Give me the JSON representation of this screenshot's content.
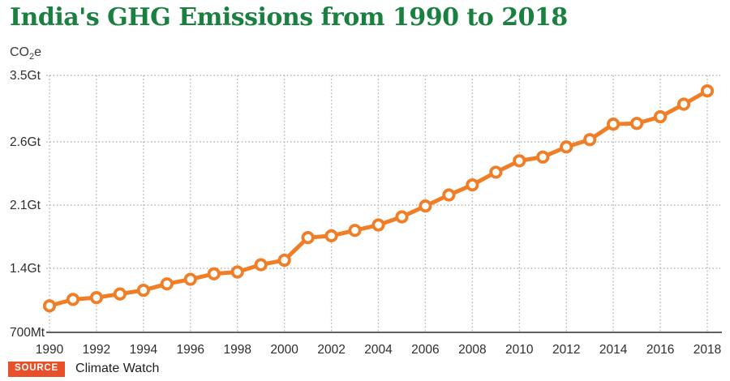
{
  "header": {
    "title": "India's GHG Emissions from 1990 to 2018"
  },
  "axis_unit": {
    "pre": "CO",
    "sub": "2",
    "post": "e"
  },
  "chart_data": {
    "type": "line",
    "title": "India's GHG Emissions from 1990 to 2018",
    "ylabel": "CO2e",
    "unit": "Gt CO2e",
    "series_name": "India GHG emissions",
    "x": [
      1990,
      1991,
      1992,
      1993,
      1994,
      1995,
      1996,
      1997,
      1998,
      1999,
      2000,
      2001,
      2002,
      2003,
      2004,
      2005,
      2006,
      2007,
      2008,
      2009,
      2010,
      2011,
      2012,
      2013,
      2014,
      2015,
      2016,
      2017,
      2018
    ],
    "values": [
      0.99,
      1.06,
      1.08,
      1.12,
      1.16,
      1.23,
      1.28,
      1.34,
      1.36,
      1.44,
      1.49,
      1.74,
      1.76,
      1.82,
      1.88,
      1.97,
      2.09,
      2.18,
      2.26,
      2.36,
      2.45,
      2.48,
      2.56,
      2.63,
      2.84,
      2.85,
      2.94,
      3.11,
      3.29
    ],
    "y_ticks": [
      {
        "label": "3.5Gt",
        "value": 3.5
      },
      {
        "label": "2.6Gt",
        "value": 2.6
      },
      {
        "label": "2.1Gt",
        "value": 2.1
      },
      {
        "label": "1.4Gt",
        "value": 1.4
      },
      {
        "label": "700Mt",
        "value": 0.7
      }
    ],
    "x_tick_years": [
      1990,
      1992,
      1994,
      1996,
      1998,
      2000,
      2002,
      2004,
      2006,
      2008,
      2010,
      2012,
      2014,
      2016,
      2018
    ],
    "grid": true,
    "legend": "none",
    "marker": "open-circle",
    "ylim_labels": [
      "700Mt",
      "3.5Gt"
    ]
  },
  "source": {
    "badge_label": "SOURCE",
    "name": "Climate Watch"
  },
  "colors": {
    "title": "#1a8040",
    "line": "#f07e26",
    "badge": "#e8502a",
    "grid": "#b3b3b3",
    "axis": "#4a4a4a",
    "text": "#2e2e2e"
  }
}
